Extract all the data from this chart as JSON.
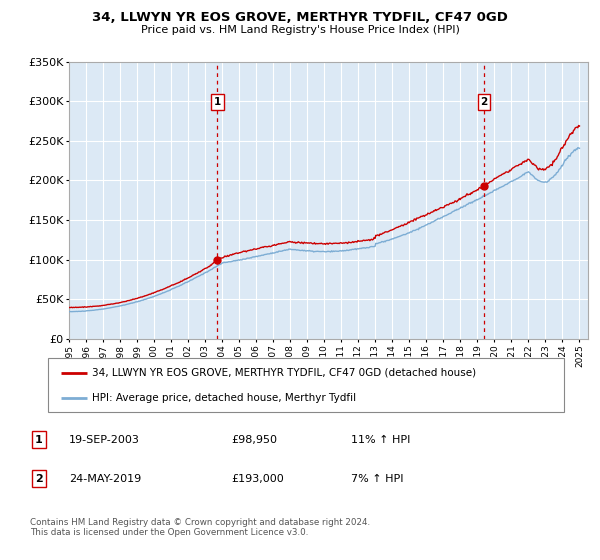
{
  "title": "34, LLWYN YR EOS GROVE, MERTHYR TYDFIL, CF47 0GD",
  "subtitle": "Price paid vs. HM Land Registry's House Price Index (HPI)",
  "ylim": [
    0,
    350000
  ],
  "xlim_start": 1995.0,
  "xlim_end": 2025.5,
  "yticks": [
    0,
    50000,
    100000,
    150000,
    200000,
    250000,
    300000,
    350000
  ],
  "ytick_labels": [
    "£0",
    "£50K",
    "£100K",
    "£150K",
    "£200K",
    "£250K",
    "£300K",
    "£350K"
  ],
  "xticks": [
    1995,
    1996,
    1997,
    1998,
    1999,
    2000,
    2001,
    2002,
    2003,
    2004,
    2005,
    2006,
    2007,
    2008,
    2009,
    2010,
    2011,
    2012,
    2013,
    2014,
    2015,
    2016,
    2017,
    2018,
    2019,
    2020,
    2021,
    2022,
    2023,
    2024,
    2025
  ],
  "plot_bg_color": "#dce9f5",
  "fig_bg_color": "#ffffff",
  "grid_color": "#ffffff",
  "line_red_color": "#cc0000",
  "line_blue_color": "#7dadd4",
  "vline_color": "#cc0000",
  "marker1_x": 2003.72,
  "marker1_y": 98950,
  "marker1_label": "1",
  "marker1_date": "19-SEP-2003",
  "marker1_price": "£98,950",
  "marker1_hpi": "11% ↑ HPI",
  "marker2_x": 2019.39,
  "marker2_y": 193000,
  "marker2_label": "2",
  "marker2_date": "24-MAY-2019",
  "marker2_price": "£193,000",
  "marker2_hpi": "7% ↑ HPI",
  "legend_line1": "34, LLWYN YR EOS GROVE, MERTHYR TYDFIL, CF47 0GD (detached house)",
  "legend_line2": "HPI: Average price, detached house, Merthyr Tydfil",
  "copyright": "Contains HM Land Registry data © Crown copyright and database right 2024.\nThis data is licensed under the Open Government Licence v3.0."
}
